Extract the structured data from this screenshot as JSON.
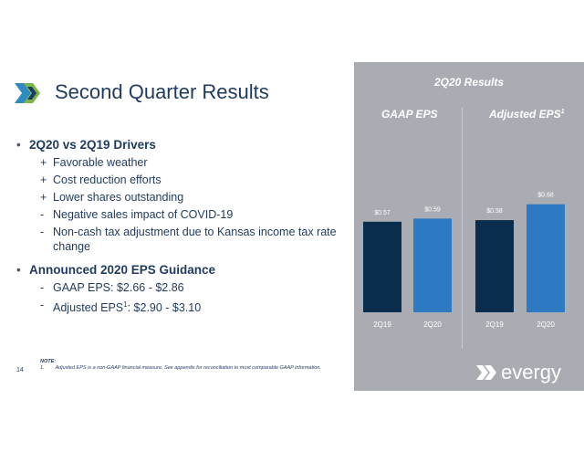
{
  "slide": {
    "title": "Second Quarter Results",
    "page_number": "14"
  },
  "drivers": {
    "heading": "2Q20 vs 2Q19 Drivers",
    "items": [
      {
        "marker": "+",
        "text": "Favorable weather"
      },
      {
        "marker": "+",
        "text": "Cost reduction efforts"
      },
      {
        "marker": "+",
        "text": "Lower shares outstanding"
      },
      {
        "marker": "-",
        "text": "Negative sales impact of COVID-19"
      },
      {
        "marker": "-",
        "text": "Non-cash tax adjustment due to Kansas income tax rate change"
      }
    ]
  },
  "guidance": {
    "heading": "Announced 2020 EPS Guidance",
    "items": [
      {
        "marker": "-",
        "prefix": "GAAP EPS",
        "sup": "",
        "suffix": ": $2.66 - $2.86"
      },
      {
        "marker": "-",
        "prefix": "Adjusted EPS",
        "sup": "1",
        "suffix": ": $2.90 - $3.10"
      }
    ]
  },
  "note": {
    "title": "NOTE:",
    "number": "1.",
    "text": "Adjusted EPS is a non-GAAP financial measure.  See appendix for reconciliation to most comparable GAAP information."
  },
  "brand": {
    "name": "evergy"
  },
  "colors": {
    "navy": "#0b2d4d",
    "blue": "#2e7bc4",
    "panel": "#a9adb3",
    "title_text": "#1f3a5f"
  },
  "chart_data": [
    {
      "type": "bar",
      "title": "GAAP EPS",
      "categories": [
        "2Q19",
        "2Q20"
      ],
      "values": [
        0.57,
        0.59
      ],
      "labels": [
        "$0.57",
        "$0.59"
      ],
      "colors": [
        "#0b2d4d",
        "#2e7bc4"
      ]
    },
    {
      "type": "bar",
      "title": "Adjusted EPS",
      "title_sup": "1",
      "categories": [
        "2Q19",
        "2Q20"
      ],
      "values": [
        0.58,
        0.68
      ],
      "labels": [
        "$0.58",
        "$0.68"
      ],
      "colors": [
        "#0b2d4d",
        "#2e7bc4"
      ]
    }
  ],
  "panel": {
    "title": "2Q20 Results"
  }
}
